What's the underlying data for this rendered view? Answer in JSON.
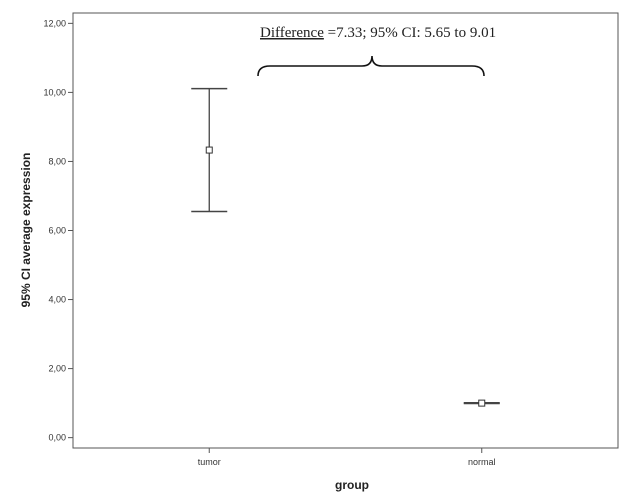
{
  "chart_data": {
    "type": "errorbar",
    "xlabel": "group",
    "ylabel": "95% CI average expression",
    "categories": [
      "tumor",
      "normal"
    ],
    "series": [
      {
        "means": [
          8.33,
          1.0
        ],
        "ci_lower": [
          6.55,
          0.99
        ],
        "ci_upper": [
          10.11,
          1.01
        ]
      }
    ],
    "ylim": [
      -0.3,
      12.3
    ],
    "yticks": [
      0,
      2,
      4,
      6,
      8,
      10,
      12
    ],
    "ytick_labels": [
      "0,00",
      "2,00",
      "4,00",
      "6,00",
      "8,00",
      "10,00",
      "12,00"
    ],
    "grid": false,
    "annotation": {
      "prefix": "Difference",
      "rest": " =7.33; 95% CI: 5.65 to 9.01"
    }
  }
}
